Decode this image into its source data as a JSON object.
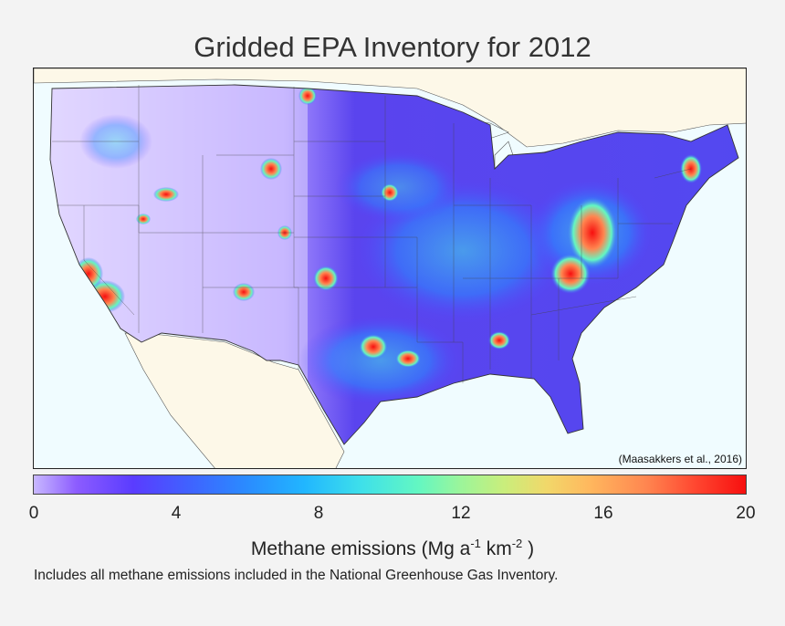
{
  "title": "Gridded EPA Inventory for 2012",
  "credit": "(Maasakkers et al., 2016)",
  "colorbar": {
    "ticks": [
      "0",
      "4",
      "8",
      "12",
      "16",
      "20"
    ],
    "label_main": "Methane emissions (Mg a",
    "label_exp1": "-1",
    "label_mid": " km",
    "label_exp2": "-2",
    "label_end": " )",
    "range": [
      0,
      20
    ]
  },
  "note": "Includes all methane emissions included in the National Greenhouse Gas Inventory.",
  "colors": {
    "land_bg": "#fdf8e8",
    "water": "#f0fcff",
    "low": "#c8b8ff",
    "mid": "#3f63ff",
    "high": "#f70f0f"
  }
}
